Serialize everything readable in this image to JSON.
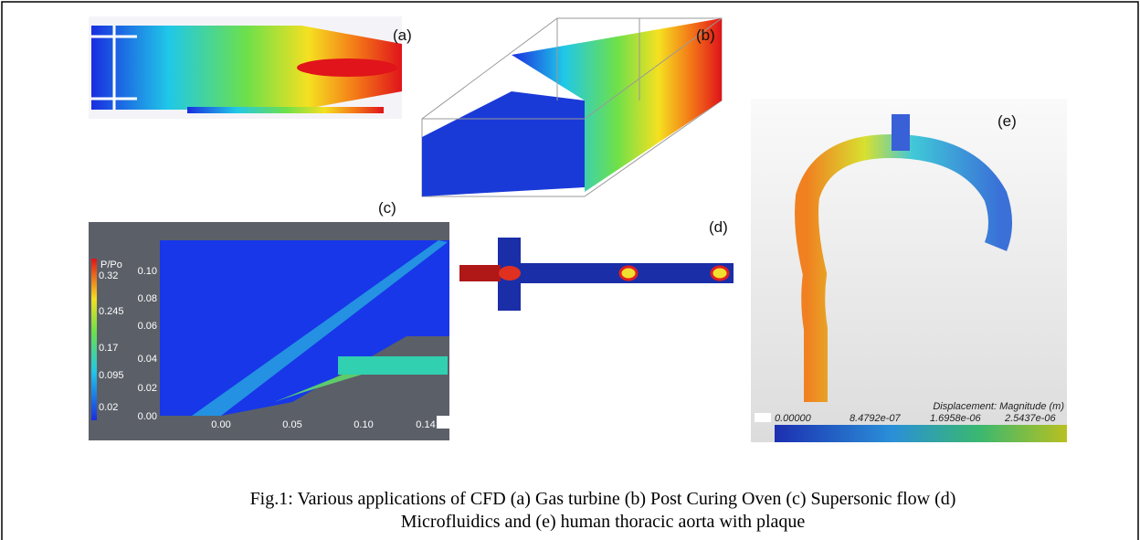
{
  "panels": {
    "a": {
      "label": "(a)"
    },
    "b": {
      "label": "(b)"
    },
    "c": {
      "label": "(c)",
      "colorbar": {
        "title": "P/Po",
        "labels": [
          "0.32",
          "0.245",
          "0.17",
          "0.095",
          "0.02"
        ]
      },
      "yticks": [
        "0.10",
        "0.08",
        "0.06",
        "0.04",
        "0.02",
        "0.00"
      ],
      "xticks": [
        "0.00",
        "0.05",
        "0.10",
        "0.14"
      ]
    },
    "d": {
      "label": "(d)"
    },
    "e": {
      "label": "(e)",
      "colorbar": {
        "title": "Displacement: Magnitude (m)",
        "labels": [
          "0.00000",
          "8.4792e-07",
          "1.6958e-06",
          "2.5437e-06"
        ]
      }
    }
  },
  "caption": {
    "lines": [
      "Fig.1: Various applications of CFD (a) Gas turbine (b) Post Curing Oven (c) Supersonic flow (d)",
      "Microfluidics and (e) human thoracic aorta with plaque"
    ]
  }
}
